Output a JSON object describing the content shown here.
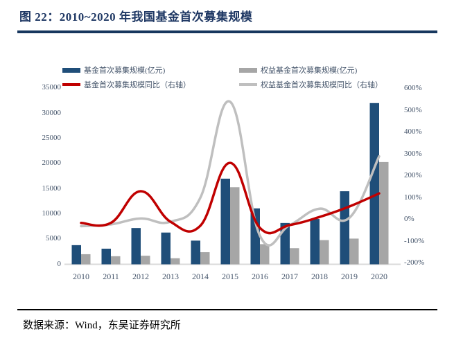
{
  "figure": {
    "title": "图 22：2010~2020 年我国基金首次募集规模",
    "source": "数据来源：Wind，东吴证券研究所"
  },
  "colors": {
    "title_navy": "#1F3864",
    "bar_blue": "#1F4E79",
    "bar_gray": "#A6A6A6",
    "line_red": "#C00000",
    "line_gray": "#BFBFBF",
    "axis_text": "#44546A",
    "baseline_gray": "#D9D9D9"
  },
  "chart_data": {
    "type": "bar+line",
    "title": "2010~2020 年我国基金首次募集规模",
    "categories": [
      "2010",
      "2011",
      "2012",
      "2013",
      "2014",
      "2015",
      "2016",
      "2017",
      "2018",
      "2019",
      "2020"
    ],
    "series": [
      {
        "name": "基金首次募集规模(亿元)",
        "type": "bar",
        "axis": "left",
        "color": "#1F4E79",
        "values": [
          3800,
          3100,
          7200,
          6300,
          4700,
          17000,
          11100,
          8200,
          9000,
          14500,
          32000
        ]
      },
      {
        "name": "权益基金首次募集规模(亿元)",
        "type": "bar",
        "axis": "left",
        "color": "#A6A6A6",
        "values": [
          2000,
          1600,
          1700,
          1200,
          2400,
          15300,
          4000,
          3200,
          4800,
          5100,
          20300
        ]
      },
      {
        "name": "基金首次募集规模同比（右轴）",
        "type": "line",
        "axis": "right",
        "color": "#C00000",
        "values_pct": [
          -15,
          -15,
          130,
          -10,
          -28,
          260,
          -38,
          -25,
          12,
          60,
          120
        ]
      },
      {
        "name": "权益基金首次募集规模同比（右轴）",
        "type": "line",
        "axis": "right",
        "color": "#BFBFBF",
        "values_pct": [
          -30,
          -22,
          5,
          -10,
          100,
          540,
          -74,
          -25,
          50,
          8,
          290
        ]
      }
    ],
    "left_axis": {
      "min": 0,
      "max": 35000,
      "ticks": [
        "0",
        "5000",
        "10000",
        "15000",
        "20000",
        "25000",
        "30000",
        "35000"
      ]
    },
    "right_axis": {
      "min_pct": -200,
      "max_pct": 600,
      "ticks": [
        "-200%",
        "-100%",
        "0%",
        "100%",
        "200%",
        "300%",
        "400%",
        "500%",
        "600%"
      ]
    },
    "legend_position": "top",
    "grid": "off"
  }
}
